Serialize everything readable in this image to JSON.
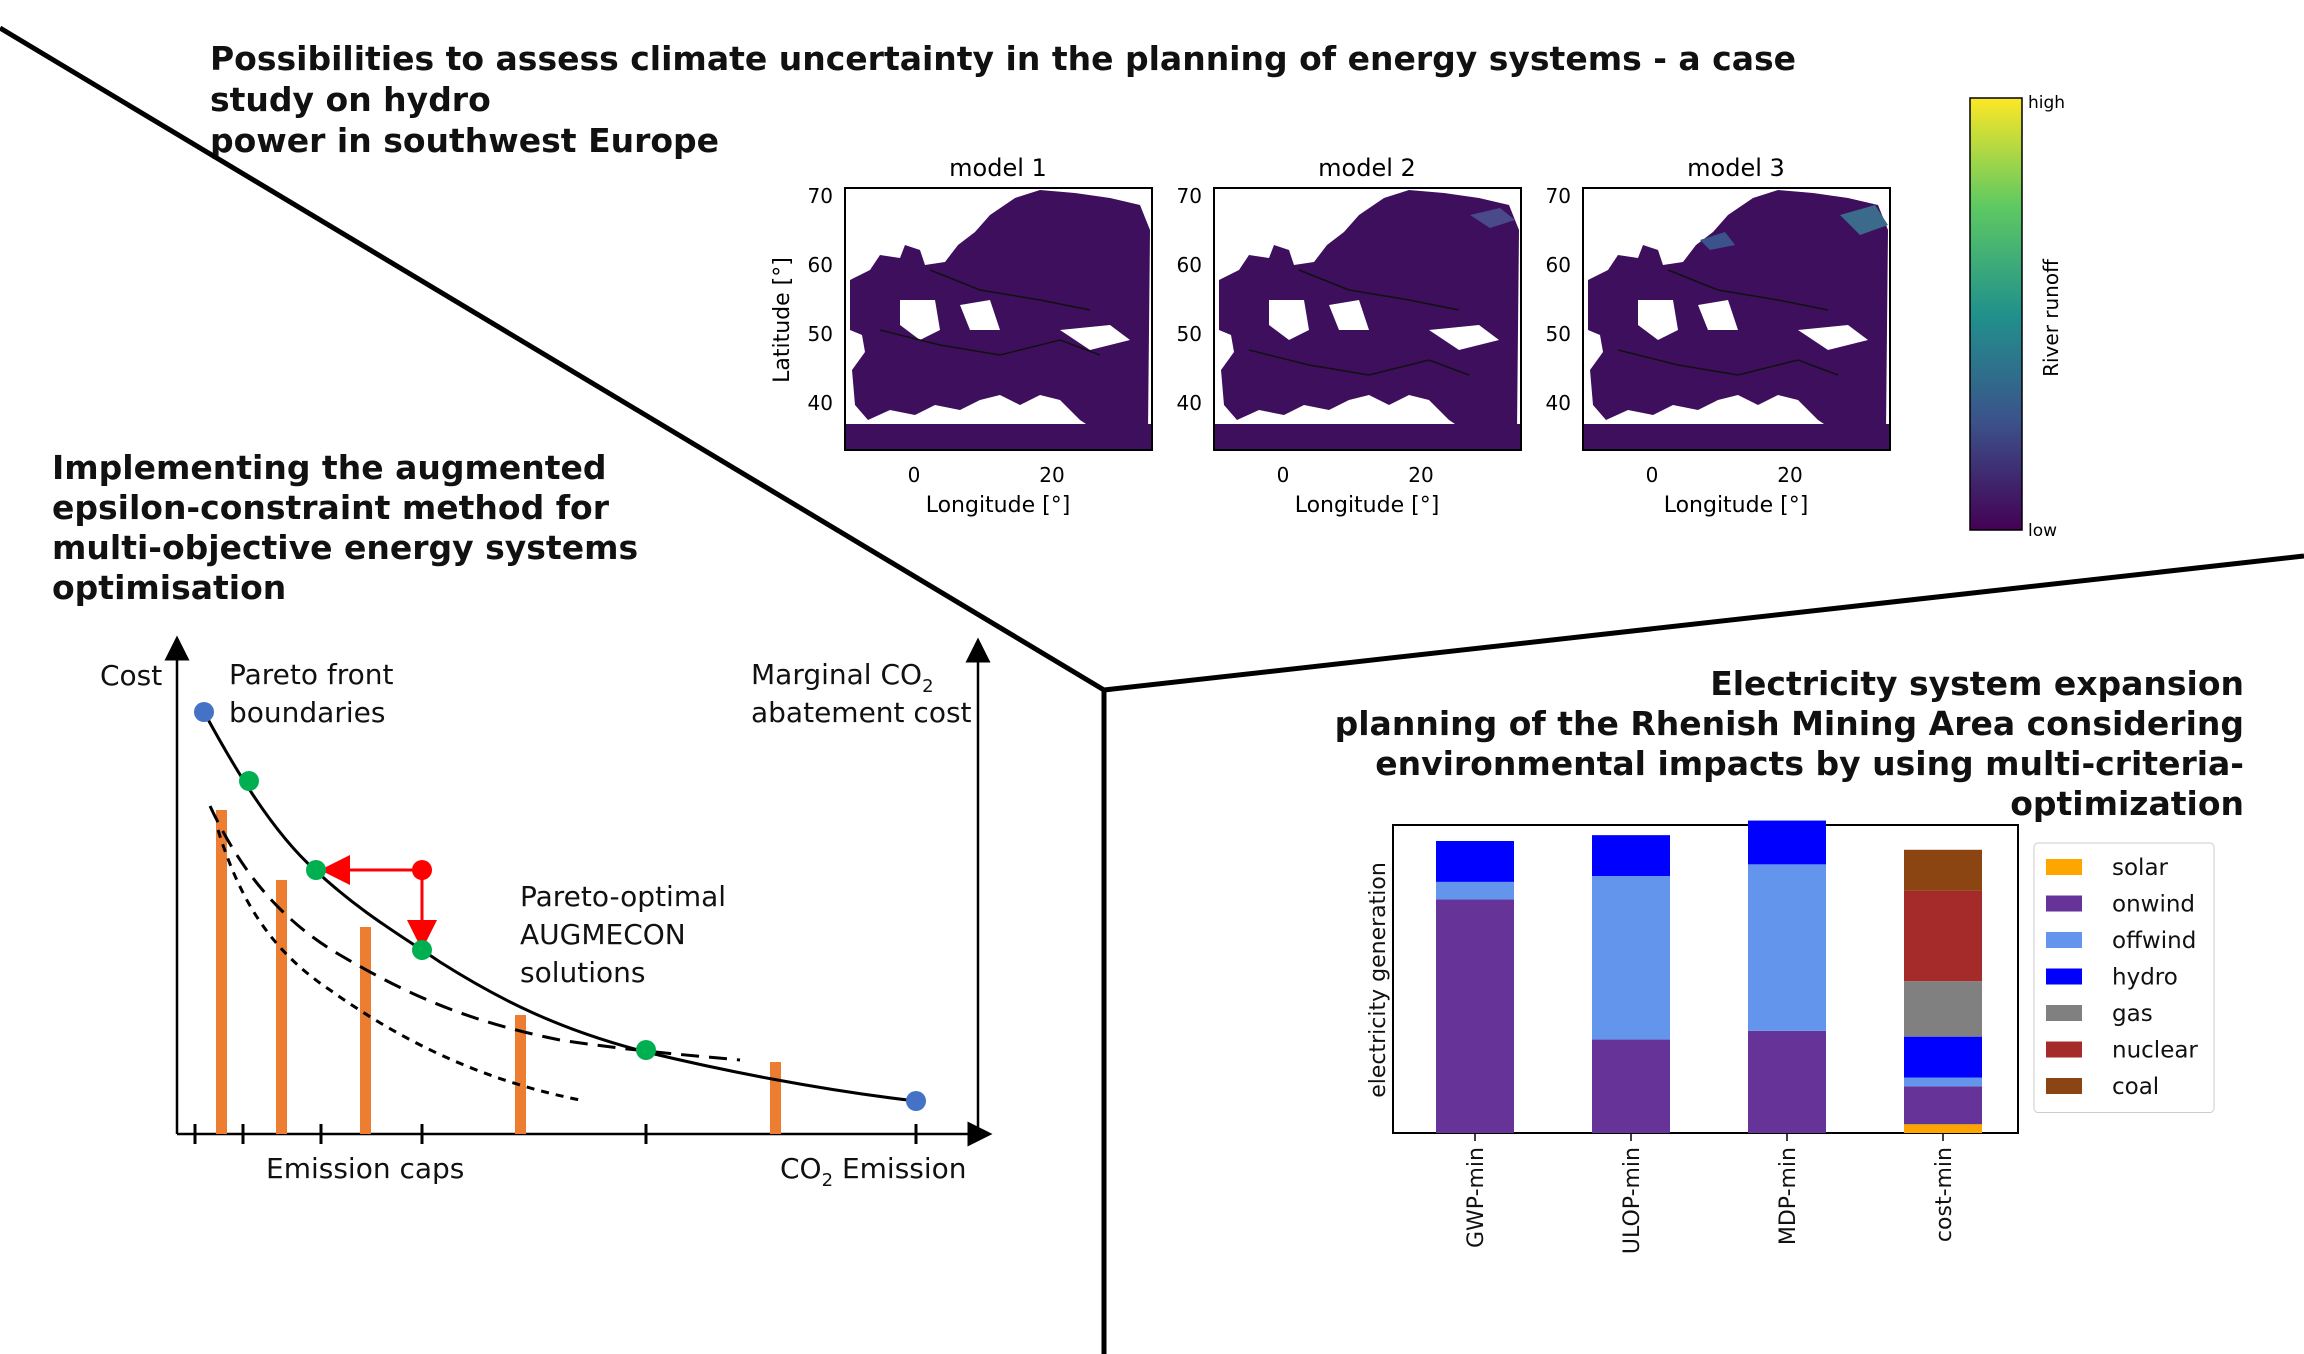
{
  "sections": {
    "top_title_line1": "Possibilities to assess climate uncertainty in the planning of energy systems - a case study on hydro",
    "top_title_line2": "power in southwest Europe",
    "left_title_line1": "Implementing the augmented",
    "left_title_line2": "epsilon-constraint method for",
    "left_title_line3": "multi-objective energy systems optimisation",
    "right_title_line1": "Electricity system expansion",
    "right_title_line2": "planning of the Rhenish Mining Area considering",
    "right_title_line3": "environmental impacts by using multi-criteria-optimization"
  },
  "maps": {
    "panels": [
      "model 1",
      "model 2",
      "model 3"
    ],
    "ylabel": "Latitude [°]",
    "xlabel": "Longitude [°]",
    "yticks": [
      "70",
      "60",
      "50",
      "40"
    ],
    "xticks": [
      "0",
      "20"
    ],
    "colorbar_label": "River runoff",
    "colorbar_high": "high",
    "colorbar_low": "low"
  },
  "pareto": {
    "ylabel": "Cost",
    "boundaries_line1": "Pareto front",
    "boundaries_line2": "boundaries",
    "marginal_line1": "Marginal CO",
    "marginal_sub": "2",
    "marginal_line2": "abatement cost",
    "optimal_line1": "Pareto-optimal",
    "optimal_line2": "AUGMECON",
    "optimal_line3": "solutions",
    "xlabel_caps": "Emission caps",
    "xlabel_main": "CO",
    "xlabel_sub": "2",
    "xlabel_tail": " Emission"
  },
  "chart_data": {
    "type": "bar",
    "stacked": true,
    "categories": [
      "GWP-min",
      "ULOP-min",
      "MDP-min",
      "cost-min"
    ],
    "ylabel": "electricity generation",
    "legend_position": "right",
    "series": [
      {
        "name": "solar",
        "color": "#ffa500",
        "values": [
          0,
          0,
          0,
          0.03
        ]
      },
      {
        "name": "onwind",
        "color": "#663399",
        "values": [
          0.8,
          0.32,
          0.35,
          0.13
        ]
      },
      {
        "name": "offwind",
        "color": "#6495ed",
        "values": [
          0.06,
          0.56,
          0.57,
          0.03
        ]
      },
      {
        "name": "hydro",
        "color": "#0000ff",
        "values": [
          0.14,
          0.14,
          0.15,
          0.14
        ]
      },
      {
        "name": "gas",
        "color": "#808080",
        "values": [
          0,
          0,
          0,
          0.19
        ]
      },
      {
        "name": "nuclear",
        "color": "#a52a2a",
        "values": [
          0,
          0,
          0,
          0.31
        ]
      },
      {
        "name": "coal",
        "color": "#8b4513",
        "values": [
          0,
          0,
          0,
          0.14
        ]
      }
    ]
  }
}
